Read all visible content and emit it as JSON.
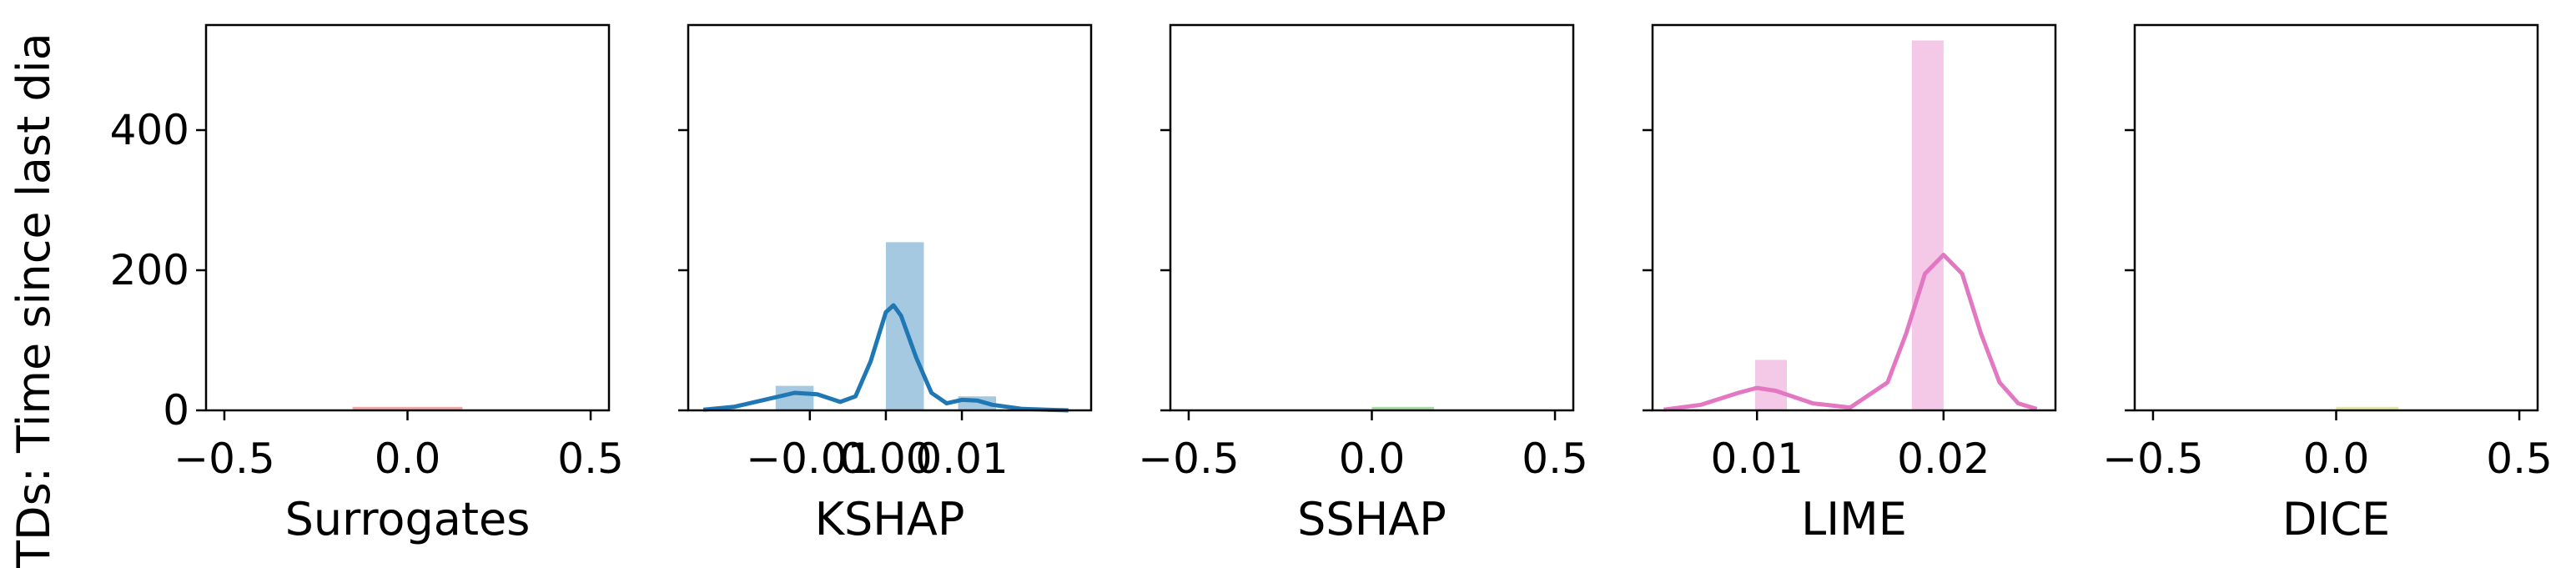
{
  "ylabel": "TDs: Time since last dia",
  "y_ticks": [
    "0",
    "200",
    "400"
  ],
  "chart_data": [
    {
      "type": "bar",
      "xlabel": "Surrogates",
      "xlim": [
        -0.55,
        0.55
      ],
      "x_ticks": [
        -0.5,
        0.0,
        0.5
      ],
      "x_tick_labels": [
        "−0.5",
        "0.0",
        "0.5"
      ],
      "ylim": [
        0,
        550
      ],
      "color": "#d62728",
      "bars": [
        {
          "x0": -0.15,
          "x1": 0.0,
          "value": 5
        },
        {
          "x0": 0.0,
          "x1": 0.15,
          "value": 5
        }
      ],
      "kde": []
    },
    {
      "type": "bar",
      "xlabel": "KSHAP",
      "xlim": [
        -0.026,
        0.027
      ],
      "x_ticks": [
        -0.01,
        0.0,
        0.01
      ],
      "x_tick_labels": [
        "−0.01",
        "0.00",
        "0.01"
      ],
      "ylim": [
        0,
        550
      ],
      "color": "#1f77b4",
      "bars": [
        {
          "x0": -0.0145,
          "x1": -0.0095,
          "value": 35
        },
        {
          "x0": 0.0,
          "x1": 0.005,
          "value": 240
        },
        {
          "x0": 0.0095,
          "x1": 0.0145,
          "value": 20
        }
      ],
      "kde": [
        [
          -0.024,
          1
        ],
        [
          -0.02,
          5
        ],
        [
          -0.016,
          15
        ],
        [
          -0.012,
          25
        ],
        [
          -0.009,
          23
        ],
        [
          -0.006,
          12
        ],
        [
          -0.004,
          20
        ],
        [
          -0.002,
          70
        ],
        [
          0.0,
          140
        ],
        [
          0.001,
          150
        ],
        [
          0.002,
          135
        ],
        [
          0.004,
          75
        ],
        [
          0.006,
          25
        ],
        [
          0.008,
          10
        ],
        [
          0.01,
          15
        ],
        [
          0.012,
          14
        ],
        [
          0.014,
          8
        ],
        [
          0.018,
          2
        ],
        [
          0.024,
          0
        ]
      ]
    },
    {
      "type": "bar",
      "xlabel": "SSHAP",
      "xlim": [
        -0.55,
        0.55
      ],
      "x_ticks": [
        -0.5,
        0.0,
        0.5
      ],
      "x_tick_labels": [
        "−0.5",
        "0.0",
        "0.5"
      ],
      "ylim": [
        0,
        550
      ],
      "color": "#2ca02c",
      "bars": [
        {
          "x0": 0.0,
          "x1": 0.17,
          "value": 5
        }
      ],
      "kde": []
    },
    {
      "type": "bar",
      "xlabel": "LIME",
      "xlim": [
        0.0044,
        0.026
      ],
      "x_ticks": [
        0.01,
        0.02
      ],
      "x_tick_labels": [
        "0.01",
        "0.02"
      ],
      "ylim": [
        0,
        550
      ],
      "color": "#e377c2",
      "bars": [
        {
          "x0": 0.0099,
          "x1": 0.0116,
          "value": 72
        },
        {
          "x0": 0.0183,
          "x1": 0.02,
          "value": 528
        }
      ],
      "kde": [
        [
          0.005,
          1
        ],
        [
          0.007,
          8
        ],
        [
          0.009,
          25
        ],
        [
          0.01,
          32
        ],
        [
          0.011,
          28
        ],
        [
          0.013,
          10
        ],
        [
          0.015,
          4
        ],
        [
          0.017,
          40
        ],
        [
          0.018,
          110
        ],
        [
          0.019,
          195
        ],
        [
          0.02,
          222
        ],
        [
          0.021,
          195
        ],
        [
          0.022,
          110
        ],
        [
          0.023,
          40
        ],
        [
          0.024,
          10
        ],
        [
          0.025,
          2
        ]
      ]
    },
    {
      "type": "bar",
      "xlabel": "DICE",
      "xlim": [
        -0.55,
        0.55
      ],
      "x_ticks": [
        -0.5,
        0.0,
        0.5
      ],
      "x_tick_labels": [
        "−0.5",
        "0.0",
        "0.5"
      ],
      "ylim": [
        0,
        550
      ],
      "color": "#bcbd22",
      "bars": [
        {
          "x0": 0.0,
          "x1": 0.17,
          "value": 5
        }
      ],
      "kde": []
    }
  ]
}
